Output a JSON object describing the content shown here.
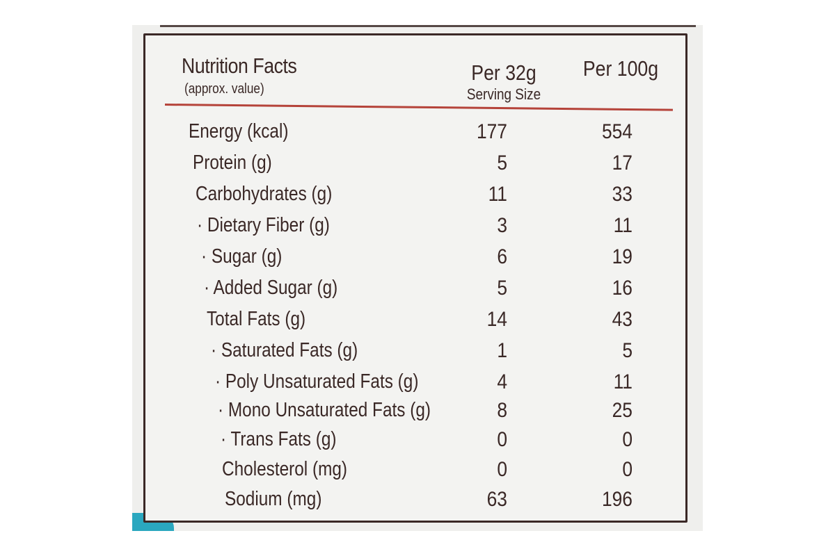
{
  "label": {
    "title": "Nutrition Facts",
    "subtitle": "(approx. value)",
    "columns": {
      "per_serving": "Per 32g",
      "serving_note": "Serving Size",
      "per_100g": "Per 100g"
    },
    "rows": [
      {
        "name": "Energy (kcal)",
        "per_32g": "177",
        "per_100g": "554"
      },
      {
        "name": "Protein (g)",
        "per_32g": "5",
        "per_100g": "17"
      },
      {
        "name": "Carbohydrates (g)",
        "per_32g": "11",
        "per_100g": "33"
      },
      {
        "name": "· Dietary Fiber (g)",
        "per_32g": "3",
        "per_100g": "11"
      },
      {
        "name": "· Sugar (g)",
        "per_32g": "6",
        "per_100g": "19"
      },
      {
        "name": "· Added Sugar (g)",
        "per_32g": "5",
        "per_100g": "16"
      },
      {
        "name": "Total Fats (g)",
        "per_32g": "14",
        "per_100g": "43"
      },
      {
        "name": "· Saturated Fats (g)",
        "per_32g": "1",
        "per_100g": "5"
      },
      {
        "name": "· Poly Unsaturated Fats (g)",
        "per_32g": "4",
        "per_100g": "11"
      },
      {
        "name": "· Mono Unsaturated Fats (g)",
        "per_32g": "8",
        "per_100g": "25"
      },
      {
        "name": "· Trans Fats (g)",
        "per_32g": "0",
        "per_100g": "0"
      },
      {
        "name": "Cholesterol (mg)",
        "per_32g": "0",
        "per_100g": "0"
      },
      {
        "name": "Sodium (mg)",
        "per_32g": "63",
        "per_100g": "196"
      }
    ]
  },
  "colors": {
    "ink": "#3a2826",
    "rule": "#b5433a",
    "packaging_accent": "#2aa7bf",
    "label_background": "#f3f3f1"
  }
}
